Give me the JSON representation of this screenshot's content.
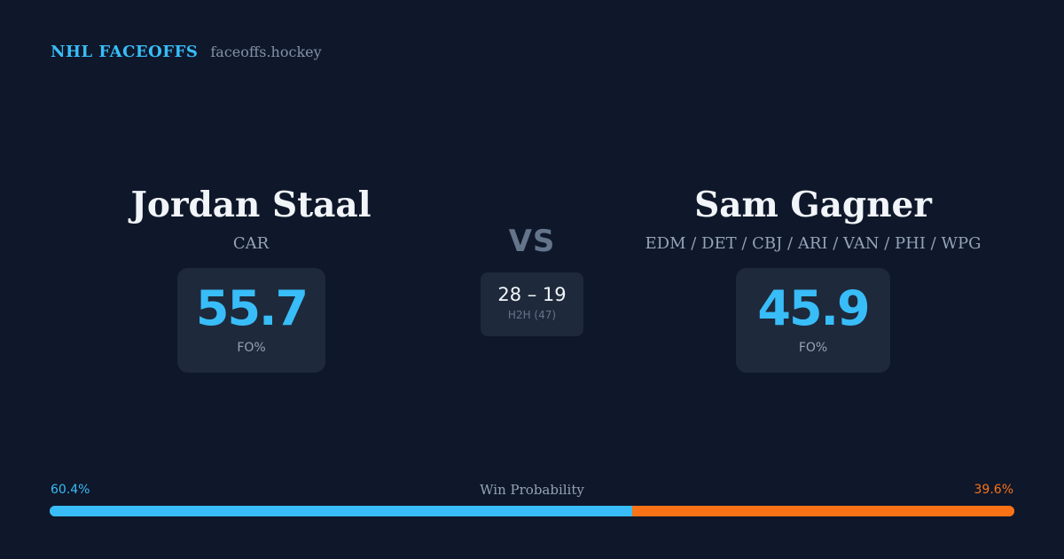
{
  "brand": {
    "title": "NHL FACEOFFS",
    "url": "faceoffs.hockey"
  },
  "player_left": {
    "name": "Jordan Staal",
    "team": "CAR",
    "fo_pct": "55.7",
    "fo_label": "FO%"
  },
  "player_right": {
    "name": "Sam Gagner",
    "team": "EDM / DET / CBJ / ARI / VAN / PHI / WPG",
    "fo_pct": "45.9",
    "fo_label": "FO%"
  },
  "vs_label": "VS",
  "h2h": {
    "score": "28 – 19",
    "label": "H2H (47)"
  },
  "win_probability": {
    "title": "Win Probability",
    "left_label": "60.4%",
    "right_label": "39.6%",
    "left_fraction": 0.604,
    "right_fraction": 0.396,
    "left_color": "#38bdf8",
    "right_color": "#f97316"
  }
}
